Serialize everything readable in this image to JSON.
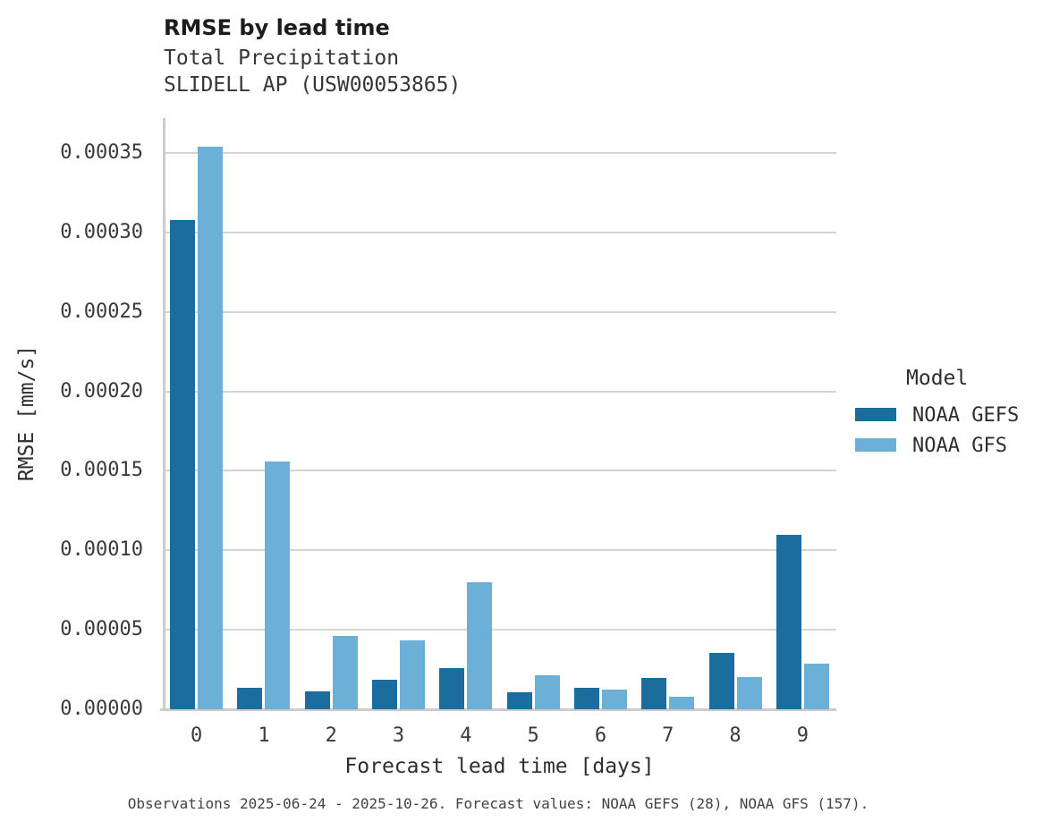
{
  "header": {
    "title": "RMSE by lead time",
    "subtitle_line1": "Total Precipitation",
    "subtitle_line2": "SLIDELL AP (USW00053865)"
  },
  "footer": {
    "caption": "Observations 2025-06-24 - 2025-10-26. Forecast values: NOAA GEFS (28), NOAA GFS (157)."
  },
  "legend": {
    "title": "Model",
    "entries": [
      {
        "label": "NOAA GEFS",
        "color": "#1b6d9e"
      },
      {
        "label": "NOAA GFS",
        "color": "#6cb0d7"
      }
    ]
  },
  "colors": {
    "gefs_bar": "#1b6d9e",
    "gfs_bar": "#6cb0d7",
    "gridline": "#d4d4d4",
    "spine": "#cccccc",
    "title_text": "#1c1c1c",
    "label_text": "#3a3a3a"
  },
  "chart_data": {
    "type": "bar",
    "title": "RMSE by lead time",
    "subtitle": [
      "Total Precipitation",
      "SLIDELL AP (USW00053865)"
    ],
    "categories": [
      "0",
      "1",
      "2",
      "3",
      "4",
      "5",
      "6",
      "7",
      "8",
      "9"
    ],
    "series": [
      {
        "name": "NOAA GEFS",
        "color": "#1b6d9e",
        "values": [
          0.000308,
          1.35e-05,
          1.1e-05,
          1.85e-05,
          2.6e-05,
          1.05e-05,
          1.35e-05,
          1.95e-05,
          3.55e-05,
          0.00011
        ]
      },
      {
        "name": "NOAA GFS",
        "color": "#6cb0d7",
        "values": [
          0.000354,
          0.000156,
          4.6e-05,
          4.35e-05,
          8e-05,
          2.15e-05,
          1.25e-05,
          7.7e-06,
          2e-05,
          2.88e-05
        ]
      }
    ],
    "xlabel": "Forecast lead time [days]",
    "ylabel": "RMSE [mm/s]",
    "ylim": [
      0,
      0.000372
    ],
    "yticks": [
      0.0,
      5e-05,
      0.0001,
      0.00015,
      0.0002,
      0.00025,
      0.0003,
      0.00035
    ],
    "ytick_format_decimals": 5,
    "grid": true,
    "legend_title": "Model",
    "legend_position": "right"
  }
}
